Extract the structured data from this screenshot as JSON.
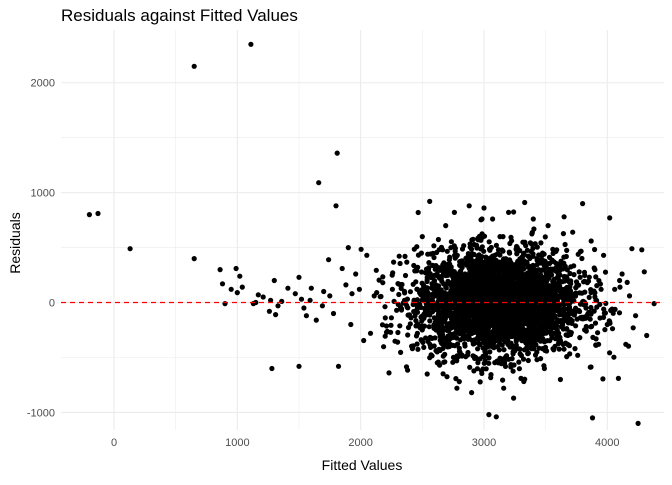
{
  "chart_data": {
    "type": "scatter",
    "title": "Residuals against Fitted Values",
    "xlabel": "Fitted Values",
    "ylabel": "Residuals",
    "xlim": [
      -430,
      4460
    ],
    "ylim": [
      -1160,
      2480
    ],
    "x_ticks": [
      0,
      1000,
      2000,
      3000,
      4000
    ],
    "x_tick_labels": [
      "0",
      "1000",
      "2000",
      "3000",
      "4000"
    ],
    "y_ticks": [
      -1000,
      0,
      1000,
      2000
    ],
    "y_tick_labels": [
      "-1000",
      "0",
      "1000",
      "2000"
    ],
    "grid": true,
    "legend": "none",
    "reference_line": {
      "y": 0,
      "style": "dashed",
      "color": "#ff0000"
    },
    "point_color": "#000000",
    "points": [
      [
        -200,
        800
      ],
      [
        -130,
        810
      ],
      [
        130,
        490
      ],
      [
        650,
        2150
      ],
      [
        1110,
        2350
      ],
      [
        650,
        400
      ],
      [
        860,
        300
      ],
      [
        880,
        170
      ],
      [
        900,
        -10
      ],
      [
        950,
        120
      ],
      [
        990,
        310
      ],
      [
        1000,
        90
      ],
      [
        1040,
        140
      ],
      [
        1130,
        -10
      ],
      [
        1170,
        70
      ],
      [
        1210,
        50
      ],
      [
        1270,
        20
      ],
      [
        1300,
        200
      ],
      [
        1310,
        -110
      ],
      [
        1330,
        -30
      ],
      [
        1360,
        10
      ],
      [
        1410,
        130
      ],
      [
        1470,
        80
      ],
      [
        1500,
        230
      ],
      [
        1520,
        30
      ],
      [
        1540,
        -50
      ],
      [
        1560,
        -120
      ],
      [
        1600,
        130
      ],
      [
        1640,
        -160
      ],
      [
        1660,
        1090
      ],
      [
        1700,
        100
      ],
      [
        1740,
        390
      ],
      [
        1800,
        880
      ],
      [
        1810,
        1360
      ],
      [
        1820,
        -580
      ],
      [
        1880,
        160
      ],
      [
        1900,
        500
      ],
      [
        1930,
        80
      ],
      [
        1960,
        260
      ],
      [
        1280,
        -600
      ],
      [
        1500,
        -580
      ],
      [
        1020,
        240
      ],
      [
        1150,
        0
      ],
      [
        1260,
        -80
      ],
      [
        1590,
        20
      ],
      [
        1690,
        -30
      ],
      [
        1750,
        60
      ],
      [
        1780,
        -100
      ],
      [
        1850,
        310
      ],
      [
        1920,
        -200
      ],
      [
        1990,
        120
      ],
      [
        2050,
        430
      ],
      [
        2080,
        -280
      ],
      [
        2110,
        60
      ],
      [
        2180,
        180
      ],
      [
        2200,
        -140
      ],
      [
        2230,
        -640
      ],
      [
        2260,
        270
      ],
      [
        2300,
        -360
      ],
      [
        2330,
        -60
      ],
      [
        2360,
        420
      ],
      [
        2420,
        -420
      ],
      [
        2460,
        120
      ],
      [
        2500,
        600
      ],
      [
        2540,
        -650
      ],
      [
        2560,
        920
      ],
      [
        2620,
        260
      ],
      [
        2640,
        -570
      ],
      [
        2690,
        700
      ],
      [
        2720,
        -400
      ],
      [
        2760,
        820
      ],
      [
        2800,
        -720
      ],
      [
        2820,
        380
      ],
      [
        2850,
        -220
      ],
      [
        2880,
        880
      ],
      [
        2900,
        -820
      ],
      [
        2940,
        520
      ],
      [
        2980,
        -620
      ],
      [
        3000,
        860
      ],
      [
        3040,
        -1020
      ],
      [
        3070,
        760
      ],
      [
        3100,
        -1040
      ],
      [
        3130,
        600
      ],
      [
        3160,
        -780
      ],
      [
        3200,
        820
      ],
      [
        3240,
        -870
      ],
      [
        3270,
        500
      ],
      [
        3300,
        -690
      ],
      [
        3330,
        910
      ],
      [
        3360,
        -460
      ],
      [
        3400,
        760
      ],
      [
        3430,
        -520
      ],
      [
        3460,
        360
      ],
      [
        3490,
        -600
      ],
      [
        3520,
        700
      ],
      [
        3560,
        -420
      ],
      [
        3590,
        480
      ],
      [
        3620,
        -700
      ],
      [
        3650,
        780
      ],
      [
        3680,
        -300
      ],
      [
        3720,
        640
      ],
      [
        3760,
        -480
      ],
      [
        3800,
        900
      ],
      [
        3830,
        -260
      ],
      [
        3870,
        560
      ],
      [
        3880,
        -1050
      ],
      [
        3900,
        300
      ],
      [
        3930,
        -380
      ],
      [
        3970,
        430
      ],
      [
        4000,
        -200
      ],
      [
        4020,
        770
      ],
      [
        4060,
        120
      ],
      [
        4090,
        -690
      ],
      [
        4120,
        260
      ],
      [
        4150,
        -380
      ],
      [
        4200,
        490
      ],
      [
        4230,
        -120
      ],
      [
        4250,
        -1100
      ],
      [
        4280,
        480
      ],
      [
        4300,
        280
      ],
      [
        4320,
        -300
      ],
      [
        4380,
        -10
      ],
      [
        4180,
        60
      ],
      [
        4100,
        200
      ],
      [
        4040,
        -60
      ],
      [
        3950,
        120
      ],
      [
        3850,
        -90
      ],
      [
        3780,
        230
      ],
      [
        3700,
        -150
      ],
      [
        3640,
        60
      ]
    ],
    "dense_cluster": {
      "note_count": 3400,
      "x_mean": 3120,
      "x_sd": 330,
      "y_sd": 230
    }
  }
}
